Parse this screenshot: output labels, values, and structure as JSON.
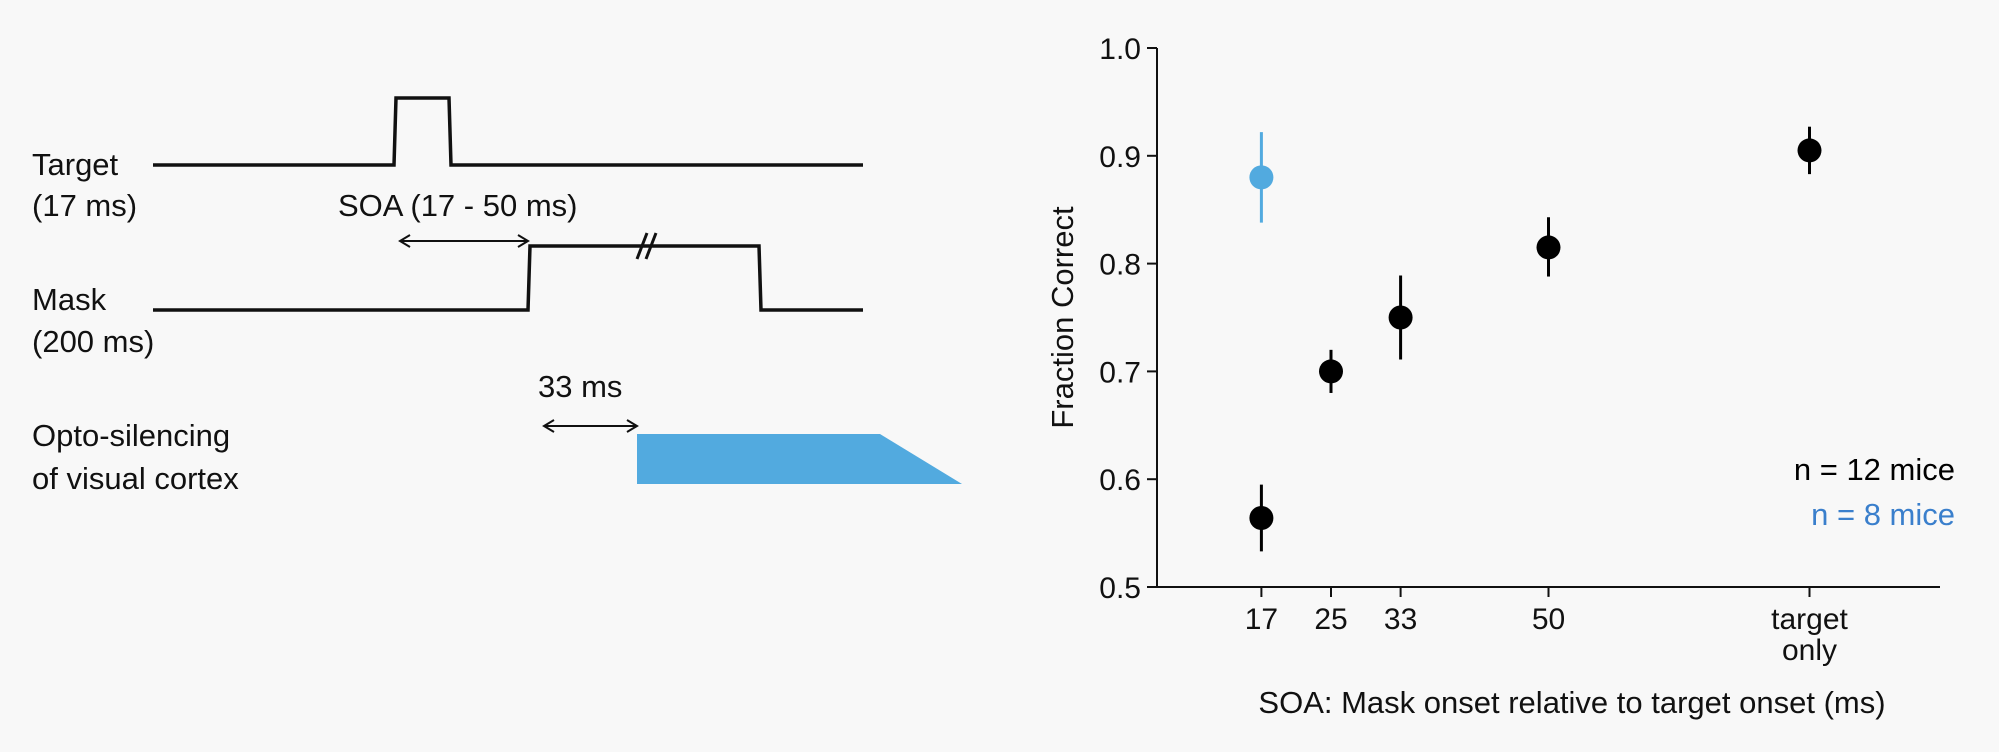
{
  "schematic": {
    "target_label": "Target",
    "target_duration": "(17 ms)",
    "soa_label": "SOA (17 - 50 ms)",
    "mask_label": "Mask",
    "mask_duration": "(200 ms)",
    "delay_label": "33 ms",
    "opto_label_line1": "Opto-silencing",
    "opto_label_line2": "of visual cortex",
    "opto_color": "#52aadf"
  },
  "chart_data": {
    "type": "scatter",
    "xlabel": "SOA: Mask onset relative to target onset (ms)",
    "ylabel": "Fraction Correct",
    "ylim": [
      0.5,
      1.0
    ],
    "yticks": [
      "0.5",
      "0.6",
      "0.7",
      "0.8",
      "0.9",
      "1.0"
    ],
    "xlim": [
      5,
      95
    ],
    "xticks": [
      {
        "x": 17,
        "label": [
          "17"
        ]
      },
      {
        "x": 25,
        "label": [
          "25"
        ]
      },
      {
        "x": 33,
        "label": [
          "33"
        ]
      },
      {
        "x": 50,
        "label": [
          "50"
        ]
      },
      {
        "x": 80,
        "label": [
          "target",
          "only"
        ]
      }
    ],
    "grid": false,
    "series": [
      {
        "name": "n = 12 mice",
        "color": "#000000",
        "points": [
          {
            "x": 17,
            "y": 0.564,
            "lo": 0.533,
            "hi": 0.595
          },
          {
            "x": 25,
            "y": 0.7,
            "lo": 0.68,
            "hi": 0.72
          },
          {
            "x": 33,
            "y": 0.75,
            "lo": 0.711,
            "hi": 0.789
          },
          {
            "x": 50,
            "y": 0.815,
            "lo": 0.788,
            "hi": 0.843
          },
          {
            "x": 80,
            "y": 0.905,
            "lo": 0.883,
            "hi": 0.927
          }
        ]
      },
      {
        "name": "n = 8 mice",
        "color": "#52aadf",
        "points": [
          {
            "x": 17,
            "y": 0.88,
            "lo": 0.838,
            "hi": 0.922
          }
        ]
      }
    ],
    "legend": {
      "position": "bottom-right",
      "colors": [
        "#000000",
        "#3a7fcc"
      ]
    }
  }
}
